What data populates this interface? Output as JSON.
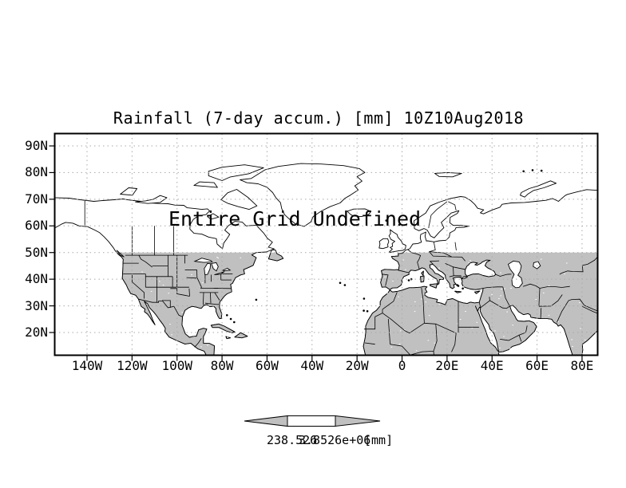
{
  "title": "Rainfall (7-day accum.) [mm] 10Z10Aug2018",
  "overlay_message": "Entire Grid Undefined",
  "axes": {
    "lat_ticks": [
      {
        "deg": 90,
        "label": "90N"
      },
      {
        "deg": 80,
        "label": "80N"
      },
      {
        "deg": 70,
        "label": "70N"
      },
      {
        "deg": 60,
        "label": "60N"
      },
      {
        "deg": 50,
        "label": "50N"
      },
      {
        "deg": 40,
        "label": "40N"
      },
      {
        "deg": 30,
        "label": "30N"
      },
      {
        "deg": 20,
        "label": "20N"
      }
    ],
    "lon_ticks": [
      {
        "deg": -140,
        "label": "140W"
      },
      {
        "deg": -120,
        "label": "120W"
      },
      {
        "deg": -100,
        "label": "100W"
      },
      {
        "deg": -80,
        "label": "80W"
      },
      {
        "deg": -60,
        "label": "60W"
      },
      {
        "deg": -40,
        "label": "40W"
      },
      {
        "deg": -20,
        "label": "20W"
      },
      {
        "deg": 0,
        "label": "0"
      },
      {
        "deg": 20,
        "label": "20E"
      },
      {
        "deg": 40,
        "label": "40E"
      },
      {
        "deg": 60,
        "label": "60E"
      },
      {
        "deg": 80,
        "label": "80E"
      }
    ]
  },
  "colorbar": {
    "min_label": "238.526",
    "max_label": "3.8526e+06",
    "unit_label": "[mm]"
  },
  "colors": {
    "shade_gray": "#c0c0c0",
    "grid_gray": "#a9a9a9",
    "line_black": "#000000",
    "background": "#ffffff"
  }
}
